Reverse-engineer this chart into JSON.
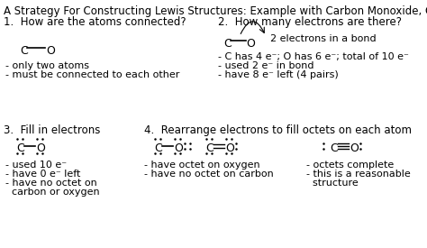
{
  "title": "A Strategy For Constructing Lewis Structures: Example with Carbon Monoxide, CO",
  "background_color": "#ffffff",
  "text_color": "#000000",
  "s1_header": "1.  How are the atoms connected?",
  "s1_bullet1": "- only two atoms",
  "s1_bullet2": "- must be connected to each other",
  "s2_header": "2.  How many electrons are there?",
  "s2_label": "2 electrons in a bond",
  "s2_b1": "- C has 4 e⁻; O has 6 e⁻; total of 10 e⁻",
  "s2_b2": "- used 2 e⁻ in bond",
  "s2_b3": "- have 8 e⁻ left (4 pairs)",
  "s3_header": "3.  Fill in electrons",
  "s3_b1": "- used 10 e⁻",
  "s3_b2": "- have 0 e⁻ left",
  "s3_b3": "- have no octet on",
  "s3_b4": "  carbon or oxygen",
  "s4_header": "4.  Rearrange electrons to fill octets on each atom",
  "s4_bl1": "- have octet on oxygen",
  "s4_bl2": "- have no octet on carbon",
  "s4_br1": "- octets complete",
  "s4_br2": "- this is a reasonable",
  "s4_br3": "  structure"
}
